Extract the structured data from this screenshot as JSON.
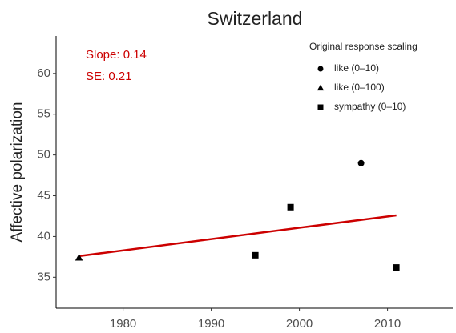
{
  "chart_data": {
    "type": "scatter",
    "title": "Switzerland",
    "y_label": "Affective polarization",
    "annotations": [
      "Slope: 0.14",
      "SE: 0.21"
    ],
    "annotation_color": "#cc0000",
    "legend_title": "Original response scaling",
    "legend_position": "top-right",
    "series": [
      {
        "name": "like (0–10)",
        "shape": "circle",
        "color": "#000000",
        "x": [
          2007
        ],
        "values": [
          49.0
        ]
      },
      {
        "name": "like (0–100)",
        "shape": "triangle",
        "color": "#000000",
        "x": [
          1975
        ],
        "values": [
          37.4
        ]
      },
      {
        "name": "sympathy (0–10)",
        "shape": "square",
        "color": "#000000",
        "x": [
          1995,
          1999,
          2011
        ],
        "values": [
          37.7,
          43.6,
          36.2
        ]
      }
    ],
    "trend": {
      "color": "#cc0000",
      "x": [
        1975,
        2011
      ],
      "values": [
        37.6,
        42.6
      ]
    },
    "xlim": [
      1972.4,
      2017.4
    ],
    "ylim": [
      31.2,
      64.6
    ],
    "xticks": [
      1980,
      1990,
      2000,
      2010
    ],
    "yticks": [
      35,
      40,
      45,
      50,
      55,
      60
    ],
    "grid": false
  }
}
